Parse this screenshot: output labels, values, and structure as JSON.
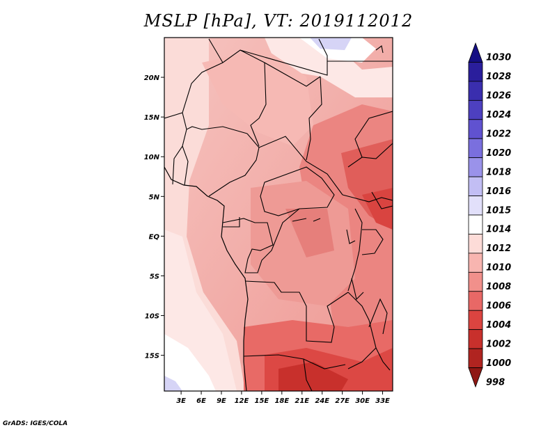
{
  "title": "MSLP [hPa], VT: 2019112012",
  "credit": "GrADS: IGES/COLA",
  "map": {
    "lat_labels": [
      "20N",
      "15N",
      "10N",
      "5N",
      "EQ",
      "5S",
      "10S",
      "15S"
    ],
    "lon_labels": [
      "3E",
      "6E",
      "9E",
      "12E",
      "15E",
      "18E",
      "21E",
      "24E",
      "27E",
      "30E",
      "33E"
    ],
    "lat_values": [
      20,
      15,
      10,
      5,
      0,
      -5,
      -10,
      -15
    ],
    "lon_values": [
      3,
      6,
      9,
      12,
      15,
      18,
      21,
      24,
      27,
      30,
      33
    ],
    "lat_range": [
      -19.5,
      25
    ],
    "lon_range": [
      0.5,
      34.5
    ],
    "unit": "hPa"
  },
  "colorbar": {
    "levels": [
      "1030",
      "1028",
      "1026",
      "1024",
      "1022",
      "1020",
      "1018",
      "1016",
      "1015",
      "1014",
      "1012",
      "1010",
      "1008",
      "1006",
      "1004",
      "1002",
      "1000",
      "998"
    ],
    "colors": [
      "#150f84",
      "#2a1e9c",
      "#3a2eae",
      "#4d40c0",
      "#6052d0",
      "#7a6fde",
      "#9a92ea",
      "#c2bef4",
      "#e2e0fa",
      "#ffffff",
      "#fddcd8",
      "#f8b5b0",
      "#f1908b",
      "#e86866",
      "#dc4440",
      "#c8302c",
      "#b02420",
      "#8f1814"
    ]
  }
}
